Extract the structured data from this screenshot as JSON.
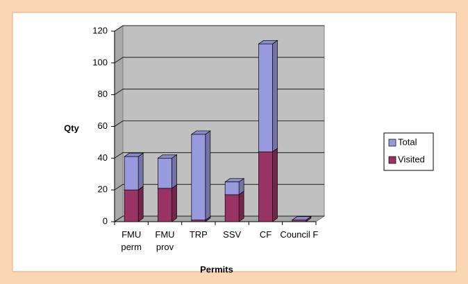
{
  "chart_data": {
    "type": "bar3d_stacked",
    "categories": [
      "FMU\nperm",
      "FMU\nprov",
      "TRP",
      "SSV",
      "CF",
      "Council F"
    ],
    "series": [
      {
        "name": "Visited",
        "color": "#993366",
        "values": [
          20,
          21,
          1,
          17,
          44,
          1
        ]
      },
      {
        "name": "Total",
        "color": "#9999dd",
        "values": [
          21,
          19,
          54,
          8,
          68,
          0
        ]
      }
    ],
    "ylim": [
      0,
      120
    ],
    "yticks": [
      0,
      20,
      40,
      60,
      80,
      100,
      120
    ],
    "grid": true,
    "ylabel": "Qty",
    "xlabel": "Permits",
    "legend": "right"
  }
}
